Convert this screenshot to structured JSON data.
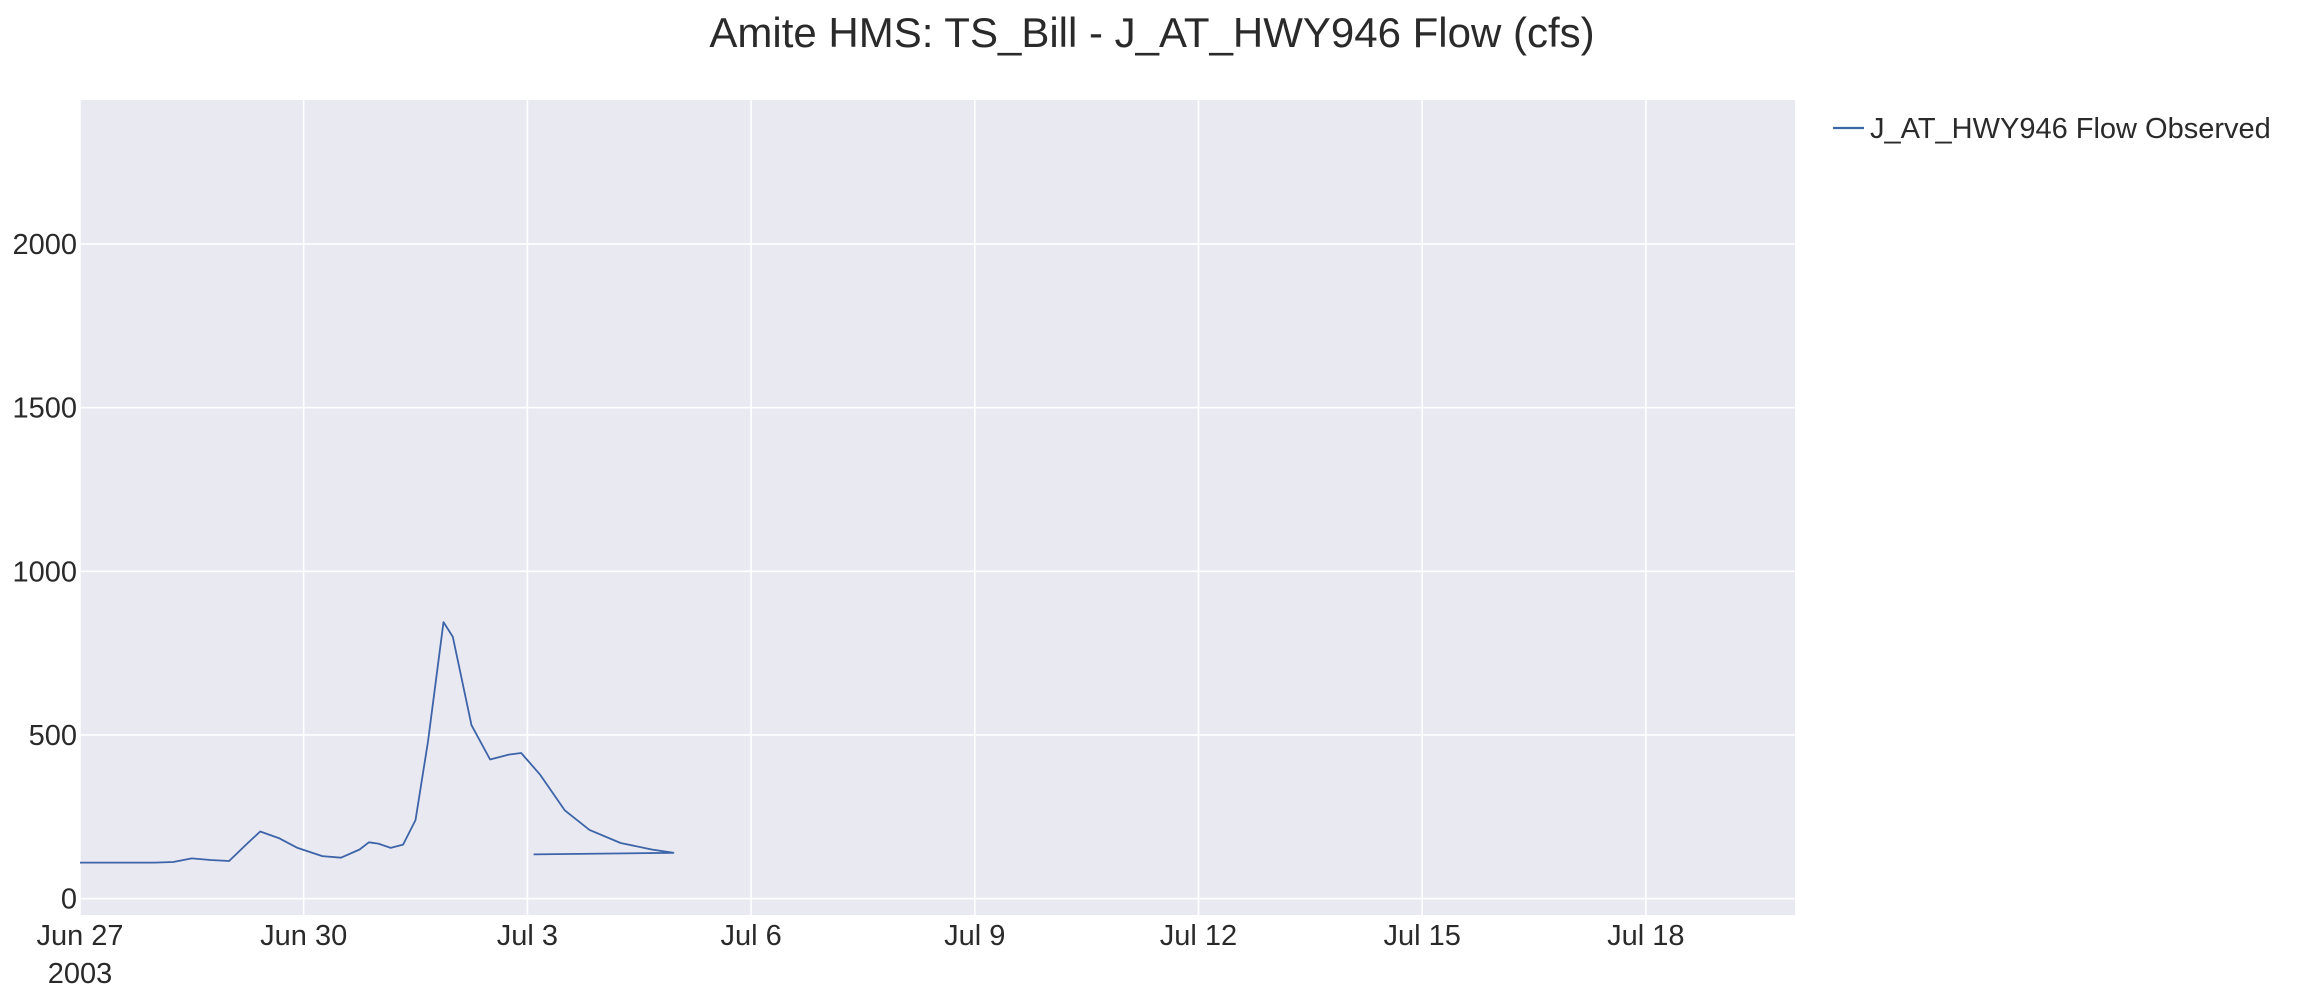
{
  "chart_data": {
    "type": "line",
    "title": "Amite HMS: TS_Bill - J_AT_HWY946 Flow (cfs)",
    "xlabel": "",
    "ylabel": "",
    "x_range": [
      "2003-06-27",
      "2003-07-20"
    ],
    "y_range": [
      -50,
      2440
    ],
    "x_ticks": [
      "2003-06-27",
      "2003-06-30",
      "2003-07-03",
      "2003-07-06",
      "2003-07-09",
      "2003-07-12",
      "2003-07-15",
      "2003-07-18"
    ],
    "x_tick_labels": [
      "Jun 27",
      "Jun 30",
      "Jul 3",
      "Jul 6",
      "Jul 9",
      "Jul 12",
      "Jul 15",
      "Jul 18"
    ],
    "x_year_label": "2003",
    "y_ticks": [
      0,
      500,
      1000,
      1500,
      2000
    ],
    "y_tick_labels": [
      "0",
      "500",
      "1000",
      "1500",
      "2000"
    ],
    "grid": true,
    "legend_position": "right",
    "colors": {
      "plot_bg": "#e9e9f2",
      "grid": "#ffffff",
      "observed": "#3d64a8",
      "simulated": "#e07840"
    },
    "series": [
      {
        "name": "J_AT_HWY946 Flow Observed",
        "color": "#3d64a8",
        "points": [
          [
            "2003-06-27 00:00",
            110
          ],
          [
            "2003-06-27 12:00",
            110
          ],
          [
            "2003-06-28 00:00",
            110
          ],
          [
            "2003-06-28 06:00",
            112
          ],
          [
            "2003-06-28 12:00",
            123
          ],
          [
            "2003-06-28 18:00",
            118
          ],
          [
            "2003-06-29 00:00",
            115
          ],
          [
            "2003-06-29 06:00",
            170
          ],
          [
            "2003-06-29 10:00",
            205
          ],
          [
            "2003-06-29 16:00",
            185
          ],
          [
            "2003-06-29 22:00",
            155
          ],
          [
            "2003-06-30 06:00",
            130
          ],
          [
            "2003-06-30 12:00",
            125
          ],
          [
            "2003-06-30 18:00",
            150
          ],
          [
            "2003-06-30 21:00",
            172
          ],
          [
            "2003-07-01 00:00",
            168
          ],
          [
            "2003-07-01 04:00",
            155
          ],
          [
            "2003-07-01 08:00",
            165
          ],
          [
            "2003-07-01 12:00",
            240
          ],
          [
            "2003-07-01 16:00",
            480
          ],
          [
            "2003-07-01 21:00",
            845
          ],
          [
            "2003-07-02 00:00",
            800
          ],
          [
            "2003-07-02 06:00",
            530
          ],
          [
            "2003-07-02 12:00",
            425
          ],
          [
            "2003-07-02 18:00",
            440
          ],
          [
            "2003-07-02 22:00",
            445
          ],
          [
            "2003-07-03 04:00",
            380
          ],
          [
            "2003-07-03 12:00",
            270
          ],
          [
            "2003-07-03 20:00",
            210
          ],
          [
            "2003-07-04 06:00",
            170
          ],
          [
            "2003-07-04 16:00",
            150
          ],
          [
            "2003-07-04 23:00",
            140
          ],
          [
            "2003-07-03 02:00",
            135
          ]
        ]
      }
    ]
  }
}
